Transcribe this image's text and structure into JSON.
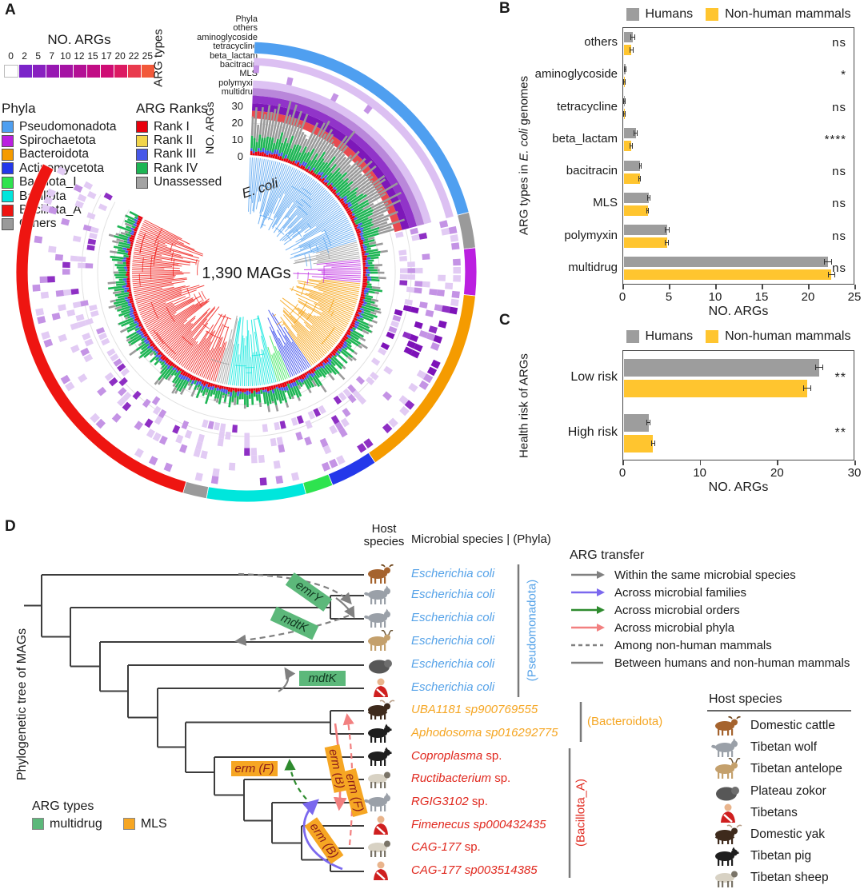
{
  "figure": {
    "panel_letters": {
      "a": "A",
      "b": "B",
      "c": "C",
      "d": "D"
    }
  },
  "chart_data": [
    {
      "panel": "B",
      "type": "bar",
      "orientation": "horizontal",
      "categories": [
        "others",
        "aminoglycoside",
        "tetracycline",
        "beta_lactam",
        "bacitracin",
        "MLS",
        "polymyxin",
        "multidrug"
      ],
      "series": [
        {
          "name": "Humans",
          "color": "#9d9d9d",
          "values": [
            1.0,
            0.2,
            0.12,
            1.3,
            1.8,
            2.7,
            4.7,
            22.0
          ],
          "errors": [
            0.25,
            0.1,
            0.06,
            0.2,
            0.15,
            0.15,
            0.25,
            0.45
          ]
        },
        {
          "name": "Non-human mammals",
          "color": "#ffc52f",
          "values": [
            0.85,
            0.08,
            0.1,
            0.8,
            1.75,
            2.6,
            4.65,
            22.4
          ],
          "errors": [
            0.2,
            0.05,
            0.05,
            0.15,
            0.12,
            0.12,
            0.2,
            0.4
          ]
        }
      ],
      "significance": [
        "ns",
        "*",
        "ns",
        "****",
        "ns",
        "ns",
        "ns",
        "ns"
      ],
      "xlabel": "NO. ARGs",
      "ylabel": "ARG types in E. coli genomes",
      "xlim": [
        0,
        25
      ],
      "xticks": [
        0,
        5,
        10,
        15,
        20,
        25
      ],
      "legend_position": "top",
      "grid": false
    },
    {
      "panel": "C",
      "type": "bar",
      "orientation": "horizontal",
      "categories": [
        "Low risk",
        "High risk"
      ],
      "series": [
        {
          "name": "Humans",
          "color": "#9d9d9d",
          "values": [
            25.3,
            3.2
          ],
          "errors": [
            0.5,
            0.3
          ]
        },
        {
          "name": "Non-human mammals",
          "color": "#ffc52f",
          "values": [
            23.7,
            3.8
          ],
          "errors": [
            0.5,
            0.25
          ]
        }
      ],
      "significance": [
        "**",
        "**"
      ],
      "xlabel": "NO. ARGs",
      "ylabel": "Health risk of ARGs",
      "xlim": [
        0,
        30
      ],
      "xticks": [
        0,
        10,
        20,
        30
      ],
      "legend_position": "top",
      "grid": false
    },
    {
      "panel": "A",
      "type": "circular-phylogeny",
      "center_label": "1,390 MAGs",
      "n_mags": 1390,
      "highlight_clade": "E. coli",
      "rings_outer_to_inner": [
        "Phyla",
        "others",
        "aminoglycoside",
        "tetracycline",
        "beta_lactam",
        "bacitracin",
        "MLS",
        "polymyxin",
        "multidrug"
      ],
      "radial_bar_axis": {
        "label": "NO. ARGs",
        "ticks": [
          30,
          20,
          10,
          0
        ]
      },
      "heatmap_scale": {
        "label": "NO. ARGs",
        "ticks": [
          0,
          2,
          5,
          7,
          10,
          12,
          15,
          17,
          20,
          22,
          25
        ]
      }
    }
  ],
  "panelA": {
    "colorbar": {
      "title": "NO. ARGs",
      "ticks": [
        "0",
        "2",
        "5",
        "7",
        "10",
        "12",
        "15",
        "17",
        "20",
        "22",
        "25"
      ],
      "colors": [
        "#ffffff",
        "#7b24c9",
        "#8820c0",
        "#9717b2",
        "#a513a4",
        "#b31095",
        "#c10d85",
        "#cf0c74",
        "#dc1a62",
        "#e93a4d",
        "#f25839"
      ]
    },
    "ring_axis_label": "ARG types",
    "ring_labels": [
      "Phyla",
      "others",
      "aminoglycoside",
      "tetracycline",
      "beta_lactam",
      "bacitracin",
      "MLS",
      "polymyxin",
      "multidrug"
    ],
    "radial_axis": {
      "label": "NO. ARGs",
      "ticks": [
        "30",
        "20",
        "10",
        "0"
      ]
    },
    "center_label": "1,390 MAGs",
    "ecoli_label": "E. coli",
    "phyla_legend": {
      "title": "Phyla",
      "items": [
        {
          "label": "Pseudomonadota",
          "color": "#4f9ff0"
        },
        {
          "label": "Spirochaetota",
          "color": "#bb1fe0"
        },
        {
          "label": "Bacteroidota",
          "color": "#f59b00"
        },
        {
          "label": "Actinomycetota",
          "color": "#2438ea"
        },
        {
          "label": "Bacillota_I",
          "color": "#2ee34f"
        },
        {
          "label": "Bacillota",
          "color": "#00e6dc"
        },
        {
          "label": "Bacillota_A",
          "color": "#ee1511"
        },
        {
          "label": "Others",
          "color": "#9a9a9a"
        }
      ]
    },
    "rank_legend": {
      "title": "ARG Ranks",
      "items": [
        {
          "label": "Rank I",
          "color": "#e8000d"
        },
        {
          "label": "Rank II",
          "color": "#f2d54a"
        },
        {
          "label": "Rank III",
          "color": "#4758e8"
        },
        {
          "label": "Rank IV",
          "color": "#1db554"
        },
        {
          "label": "Unassessed",
          "color": "#a3a3a3"
        }
      ]
    },
    "ring_segments": [
      {
        "label": "Pseudomonadota",
        "color": "#4f9ff0",
        "start": 2,
        "end": 75
      },
      {
        "label": "Others",
        "color": "#9a9a9a",
        "start": 75,
        "end": 84
      },
      {
        "label": "Spirochaetota",
        "color": "#bb1fe0",
        "start": 84,
        "end": 96
      },
      {
        "label": "Bacteroidota",
        "color": "#f59b00",
        "start": 96,
        "end": 146
      },
      {
        "label": "Actinomycetota",
        "color": "#2438ea",
        "start": 146,
        "end": 158
      },
      {
        "label": "Bacillota_I",
        "color": "#2ee34f",
        "start": 158,
        "end": 165
      },
      {
        "label": "Bacillota",
        "color": "#00e6dc",
        "start": 165,
        "end": 190
      },
      {
        "label": "Others",
        "color": "#9a9a9a",
        "start": 190,
        "end": 196
      },
      {
        "label": "Bacillota_A",
        "color": "#ee1511",
        "start": 196,
        "end": 298
      }
    ]
  },
  "panelB": {
    "legend": {
      "humans": "Humans",
      "mammals": "Non-human mammals"
    },
    "colors": {
      "humans": "#9d9d9d",
      "mammals": "#ffc52f"
    },
    "ylabel": {
      "pre": "ARG types in ",
      "italic": "E. coli",
      "post": " genomes"
    },
    "xlabel": "NO. ARGs"
  },
  "panelC": {
    "legend": {
      "humans": "Humans",
      "mammals": "Non-human mammals"
    },
    "ylabel": "Health risk of ARGs",
    "xlabel": "NO. ARGs"
  },
  "panelD": {
    "tree_axis_label": "Phylogenetic tree of MAGs",
    "host_header": [
      "Host",
      "species"
    ],
    "microbial_header": "Microbial species | (Phyla)",
    "taxa": [
      {
        "italic": "Escherichia coli",
        "rest": "",
        "group": 0,
        "host": "cattle"
      },
      {
        "italic": "Escherichia coli",
        "rest": "",
        "group": 0,
        "host": "wolf"
      },
      {
        "italic": "Escherichia coli",
        "rest": "",
        "group": 0,
        "host": "wolf"
      },
      {
        "italic": "Escherichia coli",
        "rest": "",
        "group": 0,
        "host": "antelope"
      },
      {
        "italic": "Escherichia coli",
        "rest": "",
        "group": 0,
        "host": "zokor"
      },
      {
        "italic": "Escherichia coli",
        "rest": "",
        "group": 0,
        "host": "tibetan"
      },
      {
        "italic": "UBA1181 sp900769555",
        "rest": "",
        "group": 1,
        "host": "yak"
      },
      {
        "italic": "Aphodosoma sp016292775",
        "rest": "",
        "group": 1,
        "host": "pig"
      },
      {
        "italic": "Coproplasma",
        "rest": " sp.",
        "group": 2,
        "host": "pig"
      },
      {
        "italic": "Ructibacterium",
        "rest": " sp.",
        "group": 2,
        "host": "sheep"
      },
      {
        "italic": "RGIG3102",
        "rest": " sp.",
        "group": 2,
        "host": "wolf"
      },
      {
        "italic": "Fimenecus sp000432435",
        "rest": "",
        "group": 2,
        "host": "tibetan"
      },
      {
        "italic": "CAG-177",
        "rest": " sp.",
        "group": 2,
        "host": "sheep"
      },
      {
        "italic": "CAG-177 sp003514385",
        "rest": "",
        "group": 2,
        "host": "tibetan"
      }
    ],
    "groups": [
      {
        "label": "(Pseudomonadota)",
        "color": "#55a2e8"
      },
      {
        "label": "(Bacteroidota)",
        "color": "#f5a623"
      },
      {
        "label": "(Bacillota_A)",
        "color": "#e0281e"
      }
    ],
    "gene_labels": [
      {
        "text": "emrY",
        "arg": "multidrug"
      },
      {
        "text": "mdtK",
        "arg": "multidrug"
      },
      {
        "text": "mdtK",
        "arg": "multidrug"
      },
      {
        "text": "erm (F)",
        "arg": "MLS"
      },
      {
        "text": "erm (B)",
        "arg": "MLS"
      },
      {
        "text": "erm (F)",
        "arg": "MLS"
      },
      {
        "text": "erm (B)",
        "arg": "MLS"
      }
    ],
    "arg_types_legend": {
      "title": "ARG types",
      "items": [
        {
          "label": "multidrug",
          "color": "#5cb87a"
        },
        {
          "label": "MLS",
          "color": "#f6a623"
        }
      ]
    },
    "transfer_legend": {
      "title": "ARG transfer",
      "items": [
        {
          "label": "Within the same microbial species",
          "color": "#808080",
          "dash": false,
          "head": true
        },
        {
          "label": "Across microbial families",
          "color": "#7b68ee",
          "dash": false,
          "head": true
        },
        {
          "label": "Across microbial orders",
          "color": "#2e8b2e",
          "dash": false,
          "head": true
        },
        {
          "label": "Across microbial phyla",
          "color": "#f28080",
          "dash": false,
          "head": true
        },
        {
          "label": "Among non-human mammals",
          "color": "#808080",
          "dash": true,
          "head": false
        },
        {
          "label": "Between humans and non-human mammals",
          "color": "#808080",
          "dash": false,
          "head": false
        }
      ]
    },
    "host_legend": {
      "title": "Host species",
      "items": [
        {
          "icon": "cattle",
          "label": "Domestic cattle"
        },
        {
          "icon": "wolf",
          "label": "Tibetan wolf"
        },
        {
          "icon": "antelope",
          "label": "Tibetan antelope"
        },
        {
          "icon": "zokor",
          "label": "Plateau zokor"
        },
        {
          "icon": "tibetan",
          "label": "Tibetans"
        },
        {
          "icon": "yak",
          "label": "Domestic yak"
        },
        {
          "icon": "pig",
          "label": "Tibetan pig"
        },
        {
          "icon": "sheep",
          "label": "Tibetan sheep"
        }
      ]
    }
  }
}
